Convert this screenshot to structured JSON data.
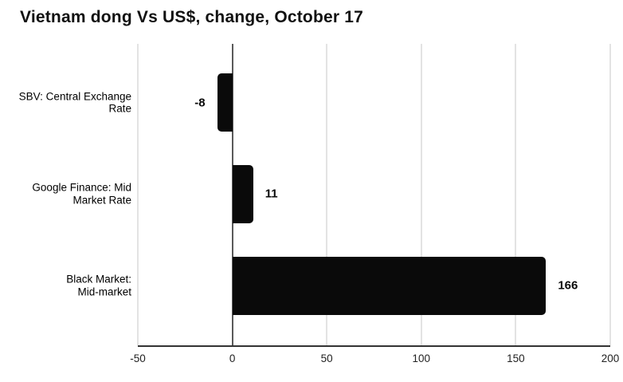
{
  "chart_data": {
    "type": "bar",
    "orientation": "horizontal",
    "title": "Vietnam dong Vs US$, change, October 17",
    "categories": [
      {
        "lines": [
          "SBV: Central Exchange",
          "Rate"
        ]
      },
      {
        "lines": [
          "Google Finance: Mid",
          "Market Rate"
        ]
      },
      {
        "lines": [
          "Black Market:",
          "Mid-market"
        ]
      }
    ],
    "values": [
      -8,
      11,
      166
    ],
    "value_labels": [
      "-8",
      "11",
      "166"
    ],
    "xlim": [
      -50,
      200
    ],
    "xticks": [
      -50,
      0,
      50,
      100,
      150,
      200
    ],
    "xtick_labels": [
      "-50",
      "0",
      "50",
      "100",
      "150",
      "200"
    ],
    "grid": true,
    "legend": "none",
    "colors": {
      "bar": "#0a0a0a",
      "gridline": "#e3e3e3",
      "zero_line": "#5a5a5a",
      "axis_line": "#333333"
    }
  }
}
